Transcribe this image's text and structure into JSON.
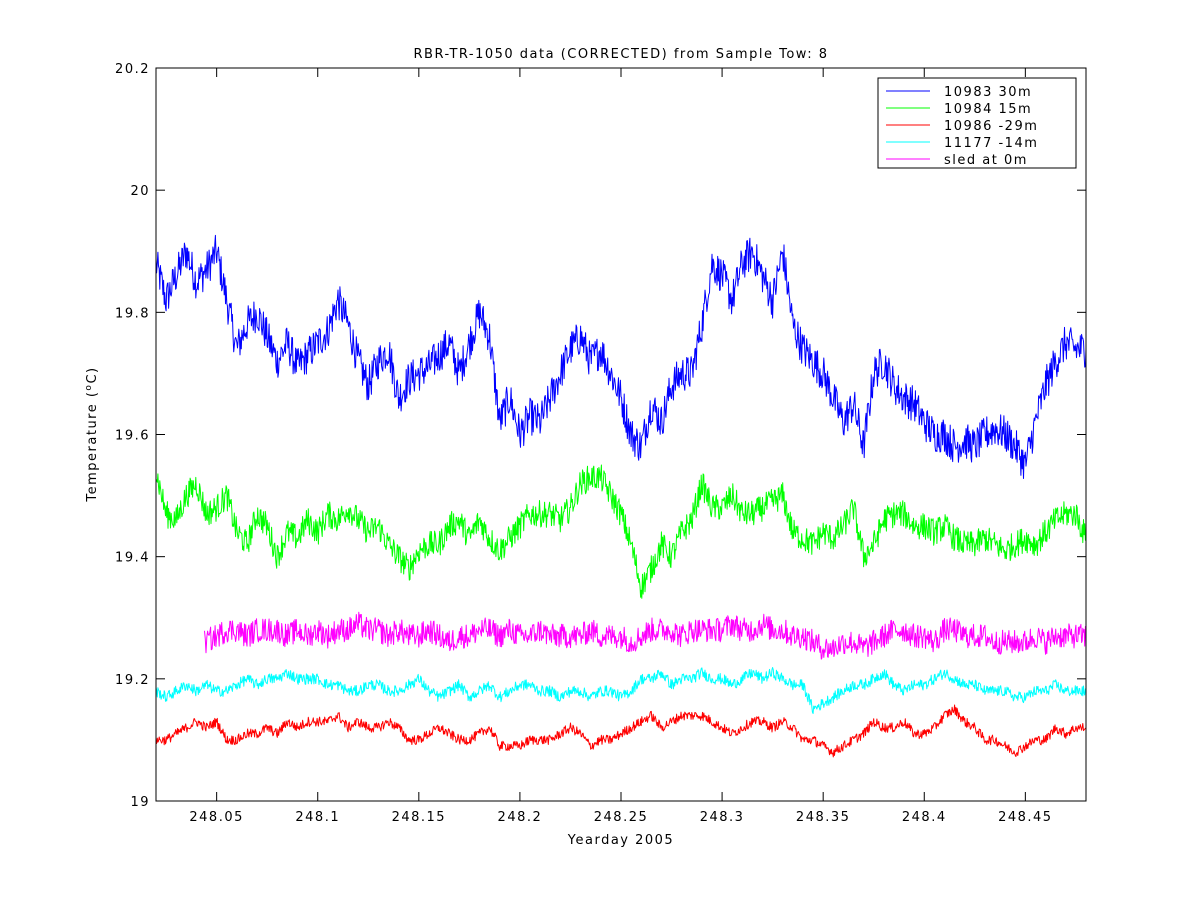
{
  "chart_data": {
    "type": "line",
    "title": "RBR-TR-1050 data (CORRECTED) from Sample Tow: 8",
    "xlabel": "Yearday 2005",
    "ylabel_main": "Temperature (",
    "ylabel_sup": "o",
    "ylabel_end": "C)",
    "xlim": [
      248.02,
      248.48
    ],
    "ylim": [
      19.0,
      20.2
    ],
    "x_ticks": [
      248.05,
      248.1,
      248.15,
      248.2,
      248.25,
      248.3,
      248.35,
      248.4,
      248.45
    ],
    "x_tick_labels": [
      "248.05",
      "248.1",
      "248.15",
      "248.2",
      "248.25",
      "248.3",
      "248.35",
      "248.4",
      "248.45"
    ],
    "y_ticks": [
      19.0,
      19.2,
      19.4,
      19.6,
      19.8,
      20.0,
      20.2
    ],
    "y_tick_labels": [
      "19",
      "19.2",
      "19.4",
      "19.6",
      "19.8",
      "20",
      "20.2"
    ],
    "grid": false,
    "legend_position": "top-right",
    "series": [
      {
        "name": "10983 30m",
        "color": "#0000ff",
        "x": [
          248.02,
          248.025,
          248.03,
          248.035,
          248.04,
          248.045,
          248.05,
          248.055,
          248.06,
          248.065,
          248.07,
          248.075,
          248.08,
          248.085,
          248.09,
          248.095,
          248.1,
          248.105,
          248.11,
          248.115,
          248.12,
          248.125,
          248.13,
          248.135,
          248.14,
          248.145,
          248.15,
          248.155,
          248.16,
          248.165,
          248.17,
          248.175,
          248.18,
          248.185,
          248.19,
          248.195,
          248.2,
          248.205,
          248.21,
          248.215,
          248.22,
          248.225,
          248.23,
          248.235,
          248.24,
          248.245,
          248.25,
          248.255,
          248.26,
          248.265,
          248.27,
          248.275,
          248.28,
          248.285,
          248.29,
          248.295,
          248.3,
          248.305,
          248.31,
          248.315,
          248.32,
          248.325,
          248.33,
          248.335,
          248.34,
          248.345,
          248.35,
          248.355,
          248.36,
          248.365,
          248.37,
          248.375,
          248.38,
          248.385,
          248.39,
          248.395,
          248.4,
          248.405,
          248.41,
          248.415,
          248.42,
          248.425,
          248.43,
          248.435,
          248.44,
          248.445,
          248.45,
          248.455,
          248.46,
          248.465,
          248.47,
          248.475,
          248.48
        ],
        "y": [
          19.88,
          19.82,
          19.86,
          19.9,
          19.85,
          19.87,
          19.9,
          19.82,
          19.74,
          19.78,
          19.8,
          19.76,
          19.72,
          19.75,
          19.71,
          19.73,
          19.75,
          19.77,
          19.82,
          19.78,
          19.72,
          19.68,
          19.72,
          19.74,
          19.66,
          19.69,
          19.7,
          19.71,
          19.73,
          19.75,
          19.7,
          19.75,
          19.8,
          19.76,
          19.62,
          19.66,
          19.6,
          19.63,
          19.62,
          19.66,
          19.7,
          19.74,
          19.76,
          19.72,
          19.74,
          19.7,
          19.66,
          19.6,
          19.58,
          19.65,
          19.62,
          19.68,
          19.7,
          19.7,
          19.78,
          19.88,
          19.86,
          19.82,
          19.88,
          19.9,
          19.86,
          19.82,
          19.9,
          19.78,
          19.74,
          19.72,
          19.7,
          19.66,
          19.62,
          19.65,
          19.58,
          19.7,
          19.72,
          19.68,
          19.66,
          19.65,
          19.62,
          19.6,
          19.6,
          19.58,
          19.59,
          19.58,
          19.6,
          19.61,
          19.6,
          19.58,
          19.55,
          19.62,
          19.68,
          19.72,
          19.75,
          19.74,
          19.74
        ]
      },
      {
        "name": "10984 15m",
        "color": "#00ff00",
        "x": [
          248.02,
          248.025,
          248.03,
          248.035,
          248.04,
          248.045,
          248.05,
          248.055,
          248.06,
          248.065,
          248.07,
          248.075,
          248.08,
          248.085,
          248.09,
          248.095,
          248.1,
          248.105,
          248.11,
          248.115,
          248.12,
          248.125,
          248.13,
          248.135,
          248.14,
          248.145,
          248.15,
          248.155,
          248.16,
          248.165,
          248.17,
          248.175,
          248.18,
          248.185,
          248.19,
          248.195,
          248.2,
          248.205,
          248.21,
          248.215,
          248.22,
          248.225,
          248.23,
          248.235,
          248.24,
          248.245,
          248.25,
          248.255,
          248.26,
          248.265,
          248.27,
          248.275,
          248.28,
          248.285,
          248.29,
          248.295,
          248.3,
          248.305,
          248.31,
          248.315,
          248.32,
          248.325,
          248.33,
          248.335,
          248.34,
          248.345,
          248.35,
          248.355,
          248.36,
          248.365,
          248.37,
          248.375,
          248.38,
          248.385,
          248.39,
          248.395,
          248.4,
          248.405,
          248.41,
          248.415,
          248.42,
          248.425,
          248.43,
          248.435,
          248.44,
          248.445,
          248.45,
          248.455,
          248.46,
          248.465,
          248.47,
          248.475,
          248.48
        ],
        "y": [
          19.54,
          19.47,
          19.46,
          19.5,
          19.52,
          19.47,
          19.48,
          19.5,
          19.44,
          19.42,
          19.47,
          19.45,
          19.4,
          19.44,
          19.43,
          19.46,
          19.44,
          19.47,
          19.46,
          19.48,
          19.46,
          19.44,
          19.45,
          19.42,
          19.4,
          19.38,
          19.41,
          19.42,
          19.42,
          19.45,
          19.46,
          19.43,
          19.46,
          19.43,
          19.41,
          19.43,
          19.45,
          19.47,
          19.47,
          19.47,
          19.46,
          19.48,
          19.52,
          19.53,
          19.53,
          19.5,
          19.47,
          19.42,
          19.35,
          19.38,
          19.42,
          19.4,
          19.44,
          19.46,
          19.52,
          19.48,
          19.48,
          19.5,
          19.47,
          19.47,
          19.48,
          19.49,
          19.5,
          19.44,
          19.43,
          19.42,
          19.44,
          19.43,
          19.45,
          19.48,
          19.4,
          19.42,
          19.46,
          19.47,
          19.47,
          19.45,
          19.45,
          19.44,
          19.45,
          19.43,
          19.42,
          19.42,
          19.43,
          19.42,
          19.41,
          19.42,
          19.43,
          19.42,
          19.44,
          19.46,
          19.47,
          19.47,
          19.43
        ]
      },
      {
        "name": "10986 -29m",
        "color": "#ff0000",
        "x": [
          248.02,
          248.025,
          248.03,
          248.035,
          248.04,
          248.045,
          248.05,
          248.055,
          248.06,
          248.065,
          248.07,
          248.075,
          248.08,
          248.085,
          248.09,
          248.095,
          248.1,
          248.105,
          248.11,
          248.115,
          248.12,
          248.125,
          248.13,
          248.135,
          248.14,
          248.145,
          248.15,
          248.155,
          248.16,
          248.165,
          248.17,
          248.175,
          248.18,
          248.185,
          248.19,
          248.195,
          248.2,
          248.205,
          248.21,
          248.215,
          248.22,
          248.225,
          248.23,
          248.235,
          248.24,
          248.245,
          248.25,
          248.255,
          248.26,
          248.265,
          248.27,
          248.275,
          248.28,
          248.285,
          248.29,
          248.295,
          248.3,
          248.305,
          248.31,
          248.315,
          248.32,
          248.325,
          248.33,
          248.335,
          248.34,
          248.345,
          248.35,
          248.355,
          248.36,
          248.365,
          248.37,
          248.375,
          248.38,
          248.385,
          248.39,
          248.395,
          248.4,
          248.405,
          248.41,
          248.415,
          248.42,
          248.425,
          248.43,
          248.435,
          248.44,
          248.445,
          248.45,
          248.455,
          248.46,
          248.465,
          248.47,
          248.475,
          248.48
        ],
        "y": [
          19.1,
          19.1,
          19.11,
          19.12,
          19.13,
          19.12,
          19.13,
          19.1,
          19.1,
          19.11,
          19.11,
          19.12,
          19.11,
          19.13,
          19.12,
          19.13,
          19.13,
          19.13,
          19.14,
          19.12,
          19.13,
          19.12,
          19.12,
          19.13,
          19.12,
          19.1,
          19.1,
          19.11,
          19.12,
          19.11,
          19.1,
          19.1,
          19.11,
          19.12,
          19.09,
          19.09,
          19.09,
          19.1,
          19.1,
          19.1,
          19.11,
          19.12,
          19.11,
          19.09,
          19.1,
          19.1,
          19.11,
          19.12,
          19.13,
          19.14,
          19.12,
          19.13,
          19.14,
          19.14,
          19.14,
          19.13,
          19.12,
          19.11,
          19.12,
          19.13,
          19.13,
          19.12,
          19.13,
          19.12,
          19.1,
          19.1,
          19.09,
          19.08,
          19.09,
          19.1,
          19.11,
          19.13,
          19.12,
          19.12,
          19.13,
          19.11,
          19.11,
          19.12,
          19.14,
          19.15,
          19.13,
          19.12,
          19.1,
          19.1,
          19.09,
          19.08,
          19.09,
          19.1,
          19.1,
          19.12,
          19.11,
          19.12,
          19.12
        ]
      },
      {
        "name": "11177 -14m",
        "color": "#00ffff",
        "x": [
          248.02,
          248.025,
          248.03,
          248.035,
          248.04,
          248.045,
          248.05,
          248.055,
          248.06,
          248.065,
          248.07,
          248.075,
          248.08,
          248.085,
          248.09,
          248.095,
          248.1,
          248.105,
          248.11,
          248.115,
          248.12,
          248.125,
          248.13,
          248.135,
          248.14,
          248.145,
          248.15,
          248.155,
          248.16,
          248.165,
          248.17,
          248.175,
          248.18,
          248.185,
          248.19,
          248.195,
          248.2,
          248.205,
          248.21,
          248.215,
          248.22,
          248.225,
          248.23,
          248.235,
          248.24,
          248.245,
          248.25,
          248.255,
          248.26,
          248.265,
          248.27,
          248.275,
          248.28,
          248.285,
          248.29,
          248.295,
          248.3,
          248.305,
          248.31,
          248.315,
          248.32,
          248.325,
          248.33,
          248.335,
          248.34,
          248.345,
          248.35,
          248.355,
          248.36,
          248.365,
          248.37,
          248.375,
          248.38,
          248.385,
          248.39,
          248.395,
          248.4,
          248.405,
          248.41,
          248.415,
          248.42,
          248.425,
          248.43,
          248.435,
          248.44,
          248.445,
          248.45,
          248.455,
          248.46,
          248.465,
          248.47,
          248.475,
          248.48
        ],
        "y": [
          19.18,
          19.17,
          19.18,
          19.19,
          19.18,
          19.19,
          19.18,
          19.18,
          19.19,
          19.2,
          19.19,
          19.2,
          19.2,
          19.21,
          19.2,
          19.2,
          19.2,
          19.19,
          19.19,
          19.18,
          19.18,
          19.19,
          19.19,
          19.18,
          19.18,
          19.19,
          19.2,
          19.18,
          19.17,
          19.18,
          19.19,
          19.17,
          19.18,
          19.19,
          19.17,
          19.18,
          19.19,
          19.19,
          19.18,
          19.18,
          19.17,
          19.18,
          19.18,
          19.17,
          19.18,
          19.18,
          19.17,
          19.18,
          19.2,
          19.2,
          19.21,
          19.19,
          19.2,
          19.2,
          19.21,
          19.2,
          19.2,
          19.19,
          19.2,
          19.21,
          19.2,
          19.21,
          19.2,
          19.19,
          19.19,
          19.15,
          19.16,
          19.17,
          19.18,
          19.19,
          19.19,
          19.2,
          19.21,
          19.19,
          19.18,
          19.19,
          19.19,
          19.2,
          19.21,
          19.2,
          19.19,
          19.19,
          19.18,
          19.18,
          19.18,
          19.17,
          19.17,
          19.18,
          19.18,
          19.19,
          19.18,
          19.18,
          19.18
        ]
      },
      {
        "name": "sled at 0m",
        "color": "#ff00ff",
        "x": [
          248.044,
          248.05,
          248.055,
          248.06,
          248.065,
          248.07,
          248.075,
          248.08,
          248.085,
          248.09,
          248.095,
          248.1,
          248.105,
          248.11,
          248.115,
          248.12,
          248.125,
          248.13,
          248.135,
          248.14,
          248.145,
          248.15,
          248.155,
          248.16,
          248.165,
          248.17,
          248.175,
          248.18,
          248.185,
          248.19,
          248.195,
          248.2,
          248.205,
          248.21,
          248.215,
          248.22,
          248.225,
          248.23,
          248.235,
          248.24,
          248.245,
          248.25,
          248.255,
          248.26,
          248.265,
          248.27,
          248.275,
          248.28,
          248.285,
          248.29,
          248.295,
          248.3,
          248.305,
          248.31,
          248.315,
          248.32,
          248.325,
          248.33,
          248.335,
          248.34,
          248.345,
          248.35,
          248.355,
          248.36,
          248.365,
          248.37,
          248.375,
          248.38,
          248.385,
          248.39,
          248.395,
          248.4,
          248.405,
          248.41,
          248.415,
          248.42,
          248.425,
          248.43,
          248.435,
          248.44,
          248.445,
          248.45,
          248.455,
          248.46,
          248.465,
          248.47,
          248.475,
          248.48
        ],
        "y": [
          19.26,
          19.27,
          19.28,
          19.28,
          19.27,
          19.28,
          19.28,
          19.28,
          19.27,
          19.28,
          19.27,
          19.28,
          19.27,
          19.28,
          19.28,
          19.29,
          19.28,
          19.28,
          19.27,
          19.28,
          19.27,
          19.27,
          19.28,
          19.27,
          19.26,
          19.27,
          19.27,
          19.28,
          19.28,
          19.27,
          19.28,
          19.27,
          19.27,
          19.28,
          19.27,
          19.27,
          19.27,
          19.27,
          19.28,
          19.27,
          19.27,
          19.27,
          19.26,
          19.27,
          19.28,
          19.28,
          19.28,
          19.27,
          19.28,
          19.28,
          19.28,
          19.28,
          19.29,
          19.28,
          19.28,
          19.29,
          19.28,
          19.28,
          19.27,
          19.27,
          19.26,
          19.25,
          19.25,
          19.26,
          19.26,
          19.25,
          19.26,
          19.27,
          19.28,
          19.28,
          19.27,
          19.27,
          19.26,
          19.28,
          19.28,
          19.27,
          19.27,
          19.27,
          19.26,
          19.26,
          19.26,
          19.26,
          19.27,
          19.26,
          19.27,
          19.27,
          19.27,
          19.27
        ]
      }
    ]
  }
}
